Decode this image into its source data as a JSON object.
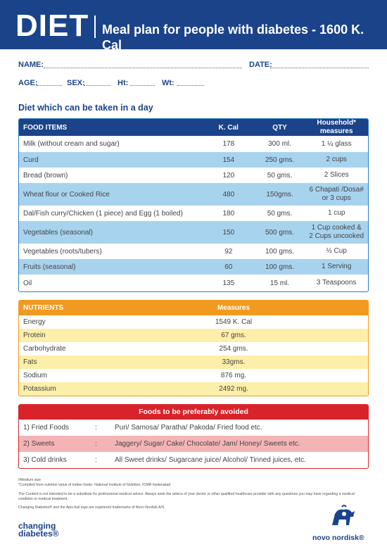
{
  "header": {
    "logo_text": "DIET",
    "title": "Meal plan for people with diabetes - 1600 K. Cal"
  },
  "form": {
    "name_label": "NAME:",
    "date_label": "DATE:",
    "age_label": "AGE:",
    "sex_label": "SEX:",
    "ht_label": "Ht:",
    "wt_label": "Wt:"
  },
  "section_title": "Diet which can be taken in a day",
  "food_table": {
    "headers": [
      "FOOD ITEMS",
      "K. Cal",
      "QTY",
      "Household* measures"
    ],
    "header_household_line1": "Household*",
    "header_household_line2": "measures",
    "rows": [
      {
        "item": "Milk (without cream and sugar)",
        "kcal": "178",
        "qty": "300 ml.",
        "measure": "1 ¼ glass",
        "measure2": ""
      },
      {
        "item": "Curd",
        "kcal": "154",
        "qty": "250 gms.",
        "measure": "2 cups",
        "measure2": ""
      },
      {
        "item": "Bread (brown)",
        "kcal": "120",
        "qty": "50 gms.",
        "measure": "2 Slices",
        "measure2": ""
      },
      {
        "item": "Wheat flour or Cooked Rice",
        "kcal": "480",
        "qty": "150gms.",
        "measure": "6 Chapati /Dosa#",
        "measure2": "or 3 cups"
      },
      {
        "item": "Dal/Fish curry/Chicken (1 piece) and Egg (1 boiled)",
        "kcal": "180",
        "qty": "50 gms.",
        "measure": "1 cup",
        "measure2": ""
      },
      {
        "item": "Vegetables (seasonal)",
        "kcal": "150",
        "qty": "500 gms.",
        "measure": "1 Cup cooked &",
        "measure2": "2 Cups uncooked"
      },
      {
        "item": "Vegetables (roots/tubers)",
        "kcal": "92",
        "qty": "100 gms.",
        "measure": "½ Cup",
        "measure2": ""
      },
      {
        "item": "Fruits (seasonal)",
        "kcal": "60",
        "qty": "100 gms.",
        "measure": "1 Serving",
        "measure2": ""
      },
      {
        "item": "Oil",
        "kcal": "135",
        "qty": "15 ml.",
        "measure": "3 Teaspoons",
        "measure2": ""
      }
    ]
  },
  "nutrients": {
    "headers": [
      "NUTRIENTS",
      "Measures"
    ],
    "rows": [
      {
        "name": "Energy",
        "value": "1549 K. Cal"
      },
      {
        "name": "Protein",
        "value": "67 gms."
      },
      {
        "name": "Carbohydrate",
        "value": "254 gms."
      },
      {
        "name": "Fats",
        "value": "33gms."
      },
      {
        "name": "Sodium",
        "value": "876 mg."
      },
      {
        "name": "Potassium",
        "value": "2492 mg."
      }
    ]
  },
  "avoided": {
    "title": "Foods to be preferably avoided",
    "rows": [
      {
        "category": "1) Fried Foods",
        "sep": ":",
        "items": "Puri/ Samosa/ Paratha/ Pakoda/ Fried food etc."
      },
      {
        "category": "2) Sweets",
        "sep": ":",
        "items": "Jaggery/ Sugar/ Cake/ Chocolate/ Jam/ Honey/ Sweets etc."
      },
      {
        "category": "3) Cold drinks",
        "sep": ":",
        "items": "All Sweet drinks/ Sugarcane juice/ Alcohol/ Tinned juices, etc."
      }
    ]
  },
  "footnotes": {
    "line1": "#Medium size",
    "line2": "*Compiled from nutrition value of Indian foods- National Institute of Nutrition, ICMR Hyderabad",
    "line3": "The Content is not intended to be a substitute for professional medical advice. Always seek the advice of your doctor or other qualified healthcare provider with any questions you may have regarding a medical condition or medical treatment.",
    "line4": "Changing Diabetes® and the Apis bull logo are registered trademarks of Novo Nordisk A/S"
  },
  "logos": {
    "left_line1": "changing",
    "left_line2": "diabetes®",
    "right": "novo nordisk®"
  },
  "colors": {
    "brand_blue": "#1b4389",
    "light_blue": "#a8d3ef",
    "orange": "#f29a1f",
    "light_yellow": "#fdeea9",
    "red": "#d8232a",
    "light_red": "#f4b4b6"
  }
}
